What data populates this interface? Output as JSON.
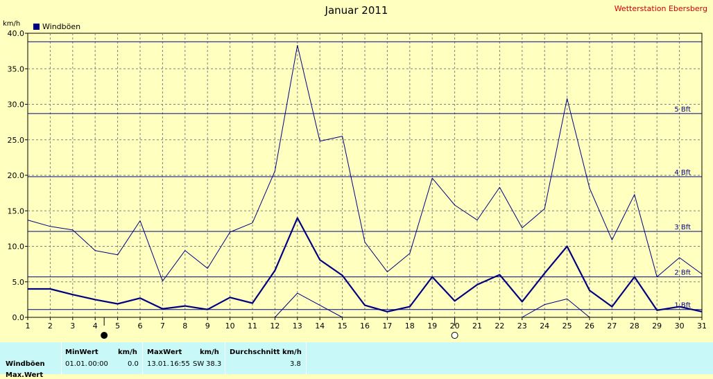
{
  "header": {
    "title": "Januar 2011",
    "station": "Wetterstation Ebersberg",
    "unit": "km/h",
    "legend": "Windböen"
  },
  "chart_data": {
    "type": "line",
    "title": "Januar 2011",
    "ylabel": "km/h",
    "ylim": [
      0,
      40
    ],
    "xlim": [
      1,
      31
    ],
    "yticks": [
      "0.0",
      "5.0",
      "10.0",
      "15.0",
      "20.0",
      "25.0",
      "30.0",
      "35.0",
      "40.0"
    ],
    "x": [
      1,
      2,
      3,
      4,
      5,
      6,
      7,
      8,
      9,
      10,
      11,
      12,
      13,
      14,
      15,
      16,
      17,
      18,
      19,
      20,
      21,
      22,
      23,
      24,
      25,
      26,
      27,
      28,
      29,
      30,
      31
    ],
    "series": [
      {
        "name": "Windböen",
        "values": [
          4.0,
          4.0,
          3.2,
          2.5,
          1.9,
          2.7,
          1.2,
          1.6,
          1.1,
          2.8,
          2.0,
          6.6,
          14.0,
          8.1,
          5.9,
          1.7,
          0.8,
          1.5,
          5.7,
          2.3,
          4.6,
          6.0,
          2.2,
          6.2,
          10.0,
          3.8,
          1.5,
          5.7,
          1.0,
          1.5,
          0.8
        ]
      },
      {
        "values": [
          13.7,
          12.8,
          12.3,
          9.4,
          8.8,
          13.6,
          5.1,
          9.4,
          6.9,
          12.0,
          13.3,
          20.6,
          38.3,
          24.8,
          25.5,
          10.6,
          6.4,
          9.0,
          19.6,
          15.8,
          13.7,
          18.3,
          12.6,
          15.3,
          30.8,
          18.2,
          10.9,
          17.3,
          5.7,
          8.4,
          6.1
        ]
      },
      {
        "values": [
          null,
          null,
          null,
          null,
          null,
          null,
          null,
          null,
          null,
          null,
          null,
          0,
          3.4,
          1.7,
          0,
          null,
          null,
          null,
          null,
          null,
          null,
          null,
          0,
          1.8,
          2.6,
          0,
          null,
          null,
          null,
          null,
          null
        ]
      }
    ],
    "reference_lines": [
      {
        "label": "1 Bft",
        "value": 1.1
      },
      {
        "label": "2 Bft",
        "value": 5.7
      },
      {
        "label": "3 Bft",
        "value": 12.1
      },
      {
        "label": "4 Bft",
        "value": 19.8
      },
      {
        "label": "5 Bft",
        "value": 28.7
      },
      {
        "label": "",
        "value": 38.8
      }
    ],
    "moon_markers": [
      {
        "x": 4.4,
        "phase": "new"
      },
      {
        "x": 20.0,
        "phase": "full"
      }
    ],
    "grid": true,
    "legend_position": "top-left"
  },
  "summary": {
    "headers": {
      "min": "MinWert",
      "min_unit": "km/h",
      "max": "MaxWert",
      "max_unit": "km/h",
      "avg": "Durchschnitt km/h"
    },
    "rows": [
      {
        "label": "Windböen",
        "min_date": "01.01.",
        "min_time": "00:00",
        "min_value": "0.0",
        "max_date": "13.01.",
        "max_time": "16:55",
        "max_dir": "SW",
        "max_value": "38.3",
        "avg": "3.8"
      }
    ],
    "next_row_partial": "Max.Wert"
  }
}
